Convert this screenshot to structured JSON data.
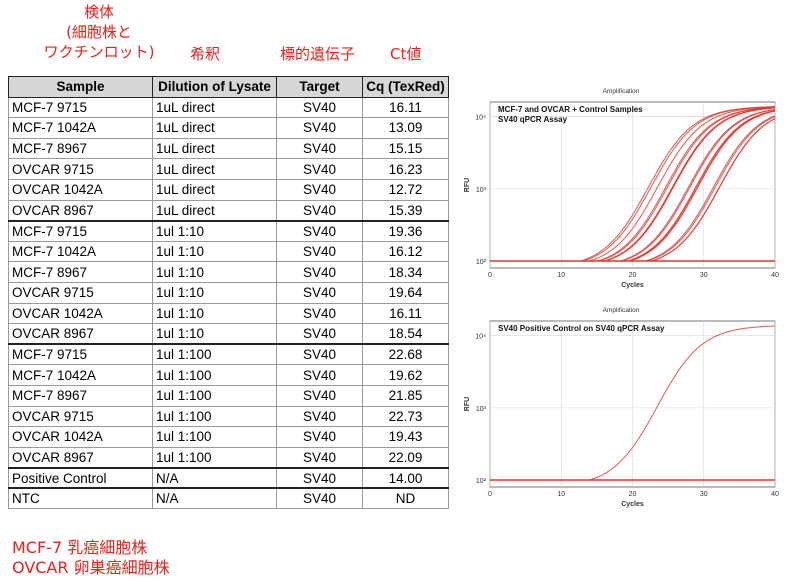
{
  "annotations": {
    "sample_line1": "検体",
    "sample_line2": "(細胞株と",
    "sample_line3": "ワクチンロット)",
    "dilution": "希釈",
    "target": "標的遺伝子",
    "ct": "Ct値",
    "footnote_line1": "MCF-7 乳癌細胞株",
    "footnote_line2": "OVCAR 卵巣癌細胞株"
  },
  "table": {
    "headers": [
      "Sample",
      "Dilution of Lysate",
      "Target",
      "Cq (TexRed)"
    ],
    "rows": [
      [
        "MCF-7 9715",
        "1uL direct",
        "SV40",
        "16.11"
      ],
      [
        "MCF-7 1042A",
        "1uL direct",
        "SV40",
        "13.09"
      ],
      [
        "MCF-7 8967",
        "1uL direct",
        "SV40",
        "15.15"
      ],
      [
        "OVCAR 9715",
        "1uL direct",
        "SV40",
        "16.23"
      ],
      [
        "OVCAR 1042A",
        "1uL direct",
        "SV40",
        "12.72"
      ],
      [
        "OVCAR 8967",
        "1uL direct",
        "SV40",
        "15.39"
      ],
      [
        "MCF-7 9715",
        "1ul 1:10",
        "SV40",
        "19.36"
      ],
      [
        "MCF-7 1042A",
        "1ul 1:10",
        "SV40",
        "16.12"
      ],
      [
        "MCF-7 8967",
        "1ul 1:10",
        "SV40",
        "18.34"
      ],
      [
        "OVCAR 9715",
        "1ul 1:10",
        "SV40",
        "19.64"
      ],
      [
        "OVCAR 1042A",
        "1ul 1:10",
        "SV40",
        "16.11"
      ],
      [
        "OVCAR 8967",
        "1ul 1:10",
        "SV40",
        "18.54"
      ],
      [
        "MCF-7 9715",
        "1ul 1:100",
        "SV40",
        "22.68"
      ],
      [
        "MCF-7 1042A",
        "1ul 1:100",
        "SV40",
        "19.62"
      ],
      [
        "MCF-7 8967",
        "1ul 1:100",
        "SV40",
        "21.85"
      ],
      [
        "OVCAR 9715",
        "1ul 1:100",
        "SV40",
        "22.73"
      ],
      [
        "OVCAR 1042A",
        "1ul 1:100",
        "SV40",
        "19.43"
      ],
      [
        "OVCAR 8967",
        "1ul 1:100",
        "SV40",
        "22.09"
      ],
      [
        "Positive Control",
        "N/A",
        "SV40",
        "14.00"
      ],
      [
        "NTC",
        "N/A",
        "SV40",
        "ND"
      ]
    ],
    "group_starts": [
      6,
      12,
      18,
      19
    ]
  },
  "chart_data": [
    {
      "type": "line",
      "header": "Amplification",
      "title": "MCF-7 and OVCAR + Control Samples",
      "subtitle": "SV40 qPCR Assay",
      "xlabel": "Cycles",
      "ylabel": "RFU",
      "xlim": [
        0,
        40
      ],
      "xticks": [
        "0",
        "10",
        "20",
        "30",
        "40"
      ],
      "ylog": true,
      "ylim": [
        80,
        16000
      ],
      "yticks": [
        "10²",
        "10³",
        "10⁴"
      ],
      "ytick_values": [
        100,
        1000,
        10000
      ],
      "baseline_rfu": 100,
      "plateau_rfu": 14000,
      "threshold_crossings": [
        16.11,
        13.09,
        15.15,
        16.23,
        12.72,
        15.39,
        19.36,
        16.12,
        18.34,
        19.64,
        16.11,
        18.54,
        22.68,
        19.62,
        21.85,
        22.73,
        19.43,
        22.09,
        14.0
      ],
      "grid": true,
      "color": "#e0372f"
    },
    {
      "type": "line",
      "header": "Amplification",
      "title": "SV40 Positive Control on SV40 qPCR Assay",
      "xlabel": "Cycles",
      "ylabel": "RFU",
      "xlim": [
        0,
        40
      ],
      "xticks": [
        "0",
        "10",
        "20",
        "30",
        "40"
      ],
      "ylog": true,
      "ylim": [
        80,
        16000
      ],
      "yticks": [
        "10²",
        "10³",
        "10⁴"
      ],
      "ytick_values": [
        100,
        1000,
        10000
      ],
      "baseline_rfu": 100,
      "plateau_rfu": 14000,
      "threshold_crossings": [
        14.0
      ],
      "grid": true,
      "color": "#e0372f"
    }
  ]
}
